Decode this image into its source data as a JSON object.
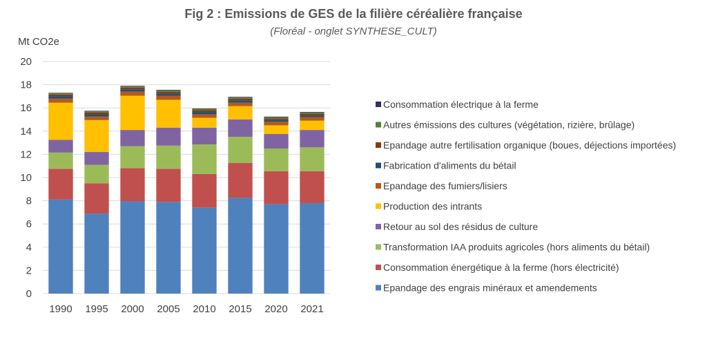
{
  "chart_data": {
    "type": "bar",
    "stacked": true,
    "title": "Fig 2 : Emissions de GES de la filière céréalière française",
    "subtitle": "(Floréal - onglet SYNTHESE_CULT)",
    "ylabel": "Mt CO2e",
    "xlabel": "",
    "ylim": [
      0,
      20
    ],
    "yticks": [
      0,
      2,
      4,
      6,
      8,
      10,
      12,
      14,
      16,
      18,
      20
    ],
    "grid": true,
    "legend_position": "right",
    "categories": [
      "1990",
      "1995",
      "2000",
      "2005",
      "2010",
      "2015",
      "2020",
      "2021"
    ],
    "series": [
      {
        "name": "Epandage des engrais minéraux et amendements",
        "color": "#4F81BD",
        "values": [
          8.1,
          6.9,
          7.95,
          7.9,
          7.4,
          8.25,
          7.7,
          7.8
        ]
      },
      {
        "name": "Consommation énergétique à la ferme (hors électricité)",
        "color": "#C0504D",
        "values": [
          2.65,
          2.6,
          2.85,
          2.85,
          2.9,
          3.0,
          2.85,
          2.75
        ]
      },
      {
        "name": "Transformation IAA produits agricoles (hors aliments du bétail)",
        "color": "#9BBB59",
        "values": [
          1.4,
          1.6,
          1.9,
          2.0,
          2.55,
          2.25,
          1.95,
          2.05
        ]
      },
      {
        "name": "Retour au sol des résidus de culture",
        "color": "#8064A2",
        "values": [
          1.1,
          1.1,
          1.4,
          1.55,
          1.45,
          1.5,
          1.25,
          1.5
        ]
      },
      {
        "name": "Production des intrants",
        "color": "#FFC000",
        "values": [
          3.2,
          2.75,
          2.95,
          2.4,
          0.85,
          1.15,
          0.75,
          0.8
        ]
      },
      {
        "name": "Epandage des fumiers/lisiers",
        "color": "#B55A1C",
        "values": [
          0.35,
          0.3,
          0.35,
          0.35,
          0.3,
          0.3,
          0.3,
          0.3
        ]
      },
      {
        "name": "Fabrication d'aliments du bétail",
        "color": "#1F4E79",
        "values": [
          0.2,
          0.2,
          0.2,
          0.2,
          0.2,
          0.2,
          0.15,
          0.15
        ]
      },
      {
        "name": "Epandage autre fertilisation organique (boues, déjections importées)",
        "color": "#843C0C",
        "values": [
          0.15,
          0.15,
          0.15,
          0.15,
          0.15,
          0.15,
          0.15,
          0.15
        ]
      },
      {
        "name": "Autres émissions des cultures (végétation, rizière, brûlage)",
        "color": "#548235",
        "values": [
          0.1,
          0.1,
          0.1,
          0.1,
          0.1,
          0.1,
          0.1,
          0.1
        ]
      },
      {
        "name": "Consommation électrique à la ferme",
        "color": "#3A2C63",
        "values": [
          0.05,
          0.05,
          0.05,
          0.05,
          0.05,
          0.05,
          0.05,
          0.05
        ]
      }
    ]
  }
}
